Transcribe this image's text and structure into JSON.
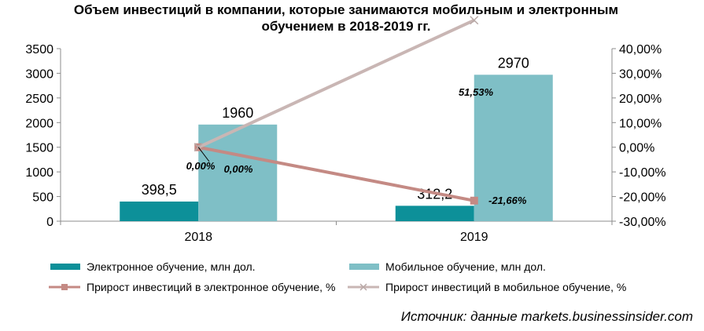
{
  "chart_data": {
    "type": "bar",
    "title": "Объем инвестиций в компании, которые занимаются мобильным и электронным обучением в 2018-2019 гг.",
    "categories": [
      "2018",
      "2019"
    ],
    "series": [
      {
        "name": "Электронное обучение, млн дол.",
        "kind": "bar",
        "axis": "left",
        "values": [
          398.5,
          312.2
        ],
        "labels": [
          "398,5",
          "312,2"
        ],
        "color": "#0d9099"
      },
      {
        "name": "Мобильное обучение, млн дол.",
        "kind": "bar",
        "axis": "left",
        "values": [
          1960,
          2970
        ],
        "labels": [
          "1960",
          "2970"
        ],
        "color": "#7fbfc6"
      },
      {
        "name": "Прирост инвестиций в электронное обучение, %",
        "kind": "line",
        "axis": "right",
        "values": [
          0.0,
          -21.66
        ],
        "labels": [
          "0,00%",
          "-21,66%"
        ],
        "color": "#c48a84",
        "marker": "square"
      },
      {
        "name": "Прирост инвестиций в мобильное обучение, %",
        "kind": "line",
        "axis": "right",
        "values": [
          0.0,
          51.53
        ],
        "labels": [
          "0,00%",
          "51,53%"
        ],
        "color": "#c9b6b4",
        "marker": "x"
      }
    ],
    "ylim_left": [
      0,
      3500
    ],
    "yticks_left": [
      "0",
      "500",
      "1000",
      "1500",
      "2000",
      "2500",
      "3000",
      "3500"
    ],
    "yticks_left_values": [
      0,
      500,
      1000,
      1500,
      2000,
      2500,
      3000,
      3500
    ],
    "ylim_right": [
      -30,
      40
    ],
    "yticks_right": [
      "-30,00%",
      "-20,00%",
      "-10,00%",
      "0,00%",
      "10,00%",
      "20,00%",
      "30,00%",
      "40,00%"
    ],
    "yticks_right_values": [
      -30,
      -20,
      -10,
      0,
      10,
      20,
      30,
      40
    ],
    "grid": false,
    "legend": "bottom",
    "source": "Источник: данные markets.businessinsider.com"
  }
}
